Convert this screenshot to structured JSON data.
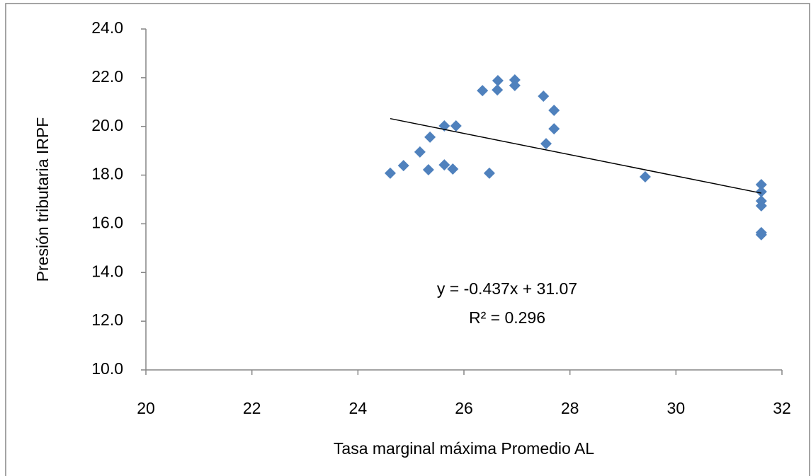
{
  "chart_data": {
    "type": "scatter",
    "x_label": "Tasa marginal máxima Promedio AL",
    "y_label": "Presión tributaria IRPF",
    "series": [
      {
        "color": "#4f81bd",
        "x": [
          24.61,
          24.86,
          25.17,
          25.33,
          25.36,
          25.63,
          25.63,
          25.79,
          25.85,
          26.35,
          26.48,
          26.63,
          26.64,
          26.96,
          26.96,
          27.5,
          27.7,
          27.7,
          27.55,
          29.42,
          31.61,
          31.61,
          31.61,
          31.61,
          31.61,
          31.61
        ],
        "values": [
          18.08,
          18.39,
          18.95,
          18.22,
          19.56,
          18.42,
          20.02,
          18.25,
          20.02,
          21.47,
          18.08,
          21.5,
          21.88,
          21.91,
          21.68,
          21.24,
          20.66,
          19.9,
          19.29,
          17.93,
          17.61,
          17.32,
          16.94,
          16.74,
          15.64,
          15.55
        ]
      }
    ],
    "trendline": {
      "x": [
        24.61,
        31.61
      ],
      "values": [
        20.32,
        17.26
      ],
      "color": "#000000",
      "equation": "y = -0.437x + 31.07",
      "r_squared": "R² = 0.296"
    },
    "xlim": [
      20,
      32
    ],
    "xticks": [
      20,
      22,
      24,
      26,
      28,
      30,
      32
    ],
    "ylim": [
      10,
      24
    ],
    "yticks": [
      {
        "value": 10,
        "label": "10.0"
      },
      {
        "value": 12,
        "label": "12.0"
      },
      {
        "value": 14,
        "label": "14.0"
      },
      {
        "value": 16,
        "label": "16.0"
      },
      {
        "value": 18,
        "label": "18.0"
      },
      {
        "value": 20,
        "label": "20.0"
      },
      {
        "value": 22,
        "label": "22.0"
      },
      {
        "value": 24,
        "label": "24.0"
      }
    ],
    "grid": false
  }
}
